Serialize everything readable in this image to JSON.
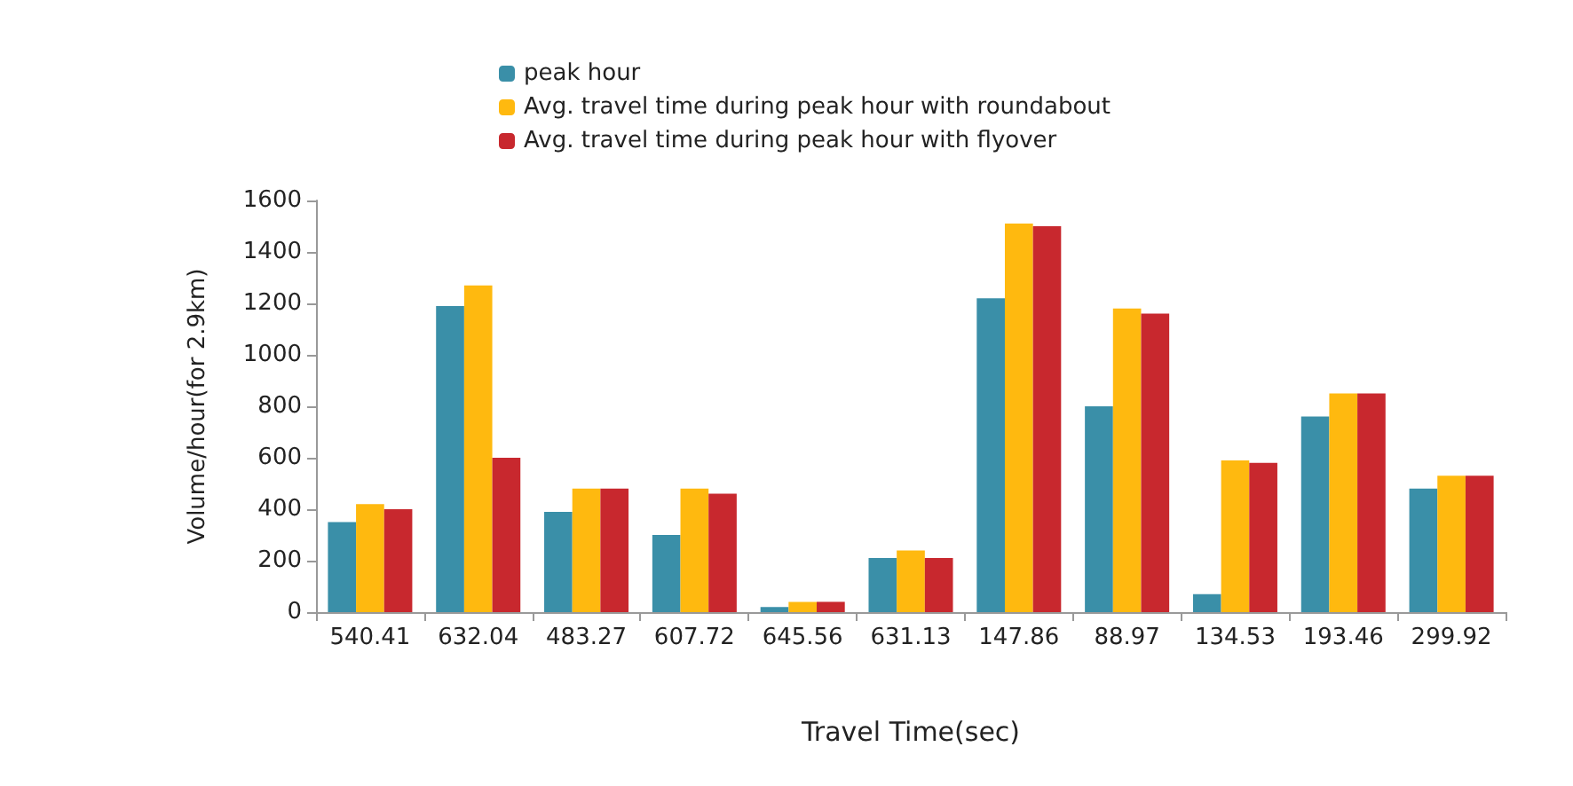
{
  "chart_data": {
    "type": "bar",
    "xlabel": "Travel Time(sec)",
    "ylabel": "Volume/hour(for 2.9km)",
    "categories": [
      "540.41",
      "632.04",
      "483.27",
      "607.72",
      "645.56",
      "631.13",
      "147.86",
      "88.97",
      "134.53",
      "193.46",
      "299.92"
    ],
    "series": [
      {
        "name": "peak hour",
        "color": "#3a8fa8",
        "values": [
          350,
          1190,
          390,
          300,
          20,
          210,
          1220,
          800,
          70,
          760,
          480
        ]
      },
      {
        "name": "Avg. travel time during peak hour with roundabout",
        "color": "#ffb90f",
        "values": [
          420,
          1270,
          480,
          480,
          40,
          240,
          1510,
          1180,
          590,
          850,
          530
        ]
      },
      {
        "name": "Avg. travel time during peak hour with flyover",
        "color": "#c8282e",
        "values": [
          400,
          600,
          480,
          460,
          40,
          210,
          1500,
          1160,
          580,
          850,
          530
        ]
      }
    ],
    "ylim": [
      0,
      1600
    ],
    "yticks": [
      0,
      200,
      400,
      600,
      800,
      1000,
      1200,
      1400,
      1600
    ],
    "grid": false,
    "legend": "top"
  }
}
